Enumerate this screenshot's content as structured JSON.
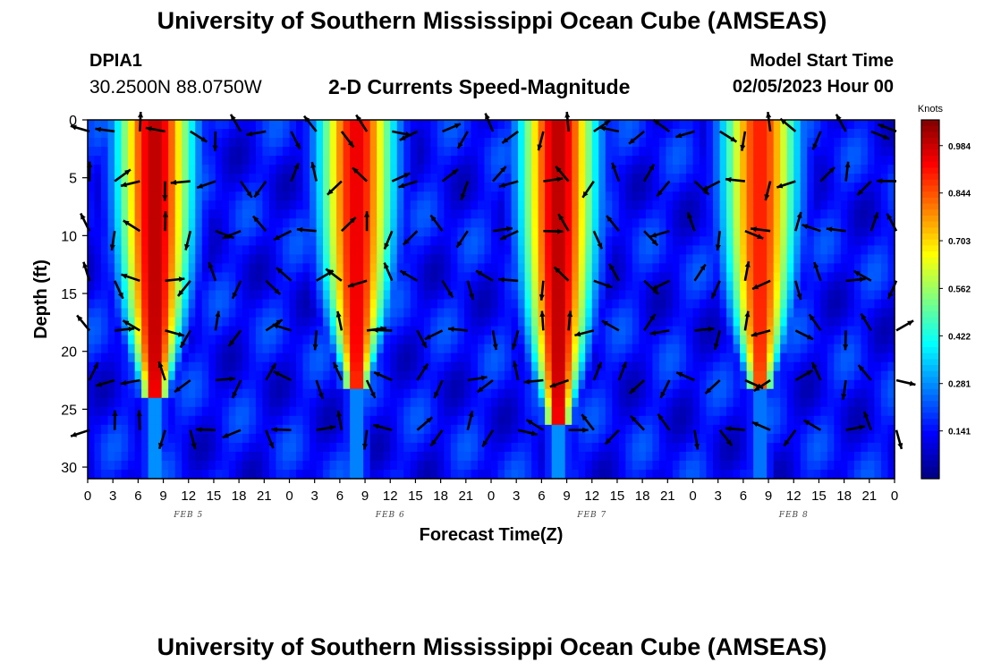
{
  "header": {
    "title": "University of Southern Mississippi Ocean Cube (AMSEAS)",
    "station_id": "DPIA1",
    "coordinates": "30.2500N  88.0750W",
    "chart_title": "2-D Currents Speed-Magnitude",
    "model_start_label": "Model Start Time",
    "model_start_value": "02/05/2023 Hour 00"
  },
  "footer": {
    "title": "University of Southern Mississippi Ocean Cube (AMSEAS)"
  },
  "chart_data": {
    "type": "heatmap",
    "title": "2-D Currents Speed-Magnitude",
    "xlabel": "Forecast Time(Z)",
    "ylabel": "Depth (ft)",
    "x_ticks": [
      "0",
      "3",
      "6",
      "9",
      "12",
      "15",
      "18",
      "21",
      "0",
      "3",
      "6",
      "9",
      "12",
      "15",
      "18",
      "21",
      "0",
      "3",
      "6",
      "9",
      "12",
      "15",
      "18",
      "21",
      "0",
      "3",
      "6",
      "9",
      "12",
      "15",
      "18",
      "21",
      "0"
    ],
    "x_range_hours": [
      0,
      96
    ],
    "date_labels": [
      {
        "label": "FEB 5",
        "hour": 12
      },
      {
        "label": "FEB 6",
        "hour": 36
      },
      {
        "label": "FEB 7",
        "hour": 60
      },
      {
        "label": "FEB 8",
        "hour": 84
      }
    ],
    "y_ticks": [
      "0",
      "5",
      "10",
      "15",
      "20",
      "25",
      "30"
    ],
    "ylim": [
      0,
      31
    ],
    "y_inverted": true,
    "colorbar": {
      "label": "Knots",
      "ticks": [
        "0.984",
        "0.844",
        "0.703",
        "0.562",
        "0.422",
        "0.281",
        "0.141"
      ],
      "range": [
        0,
        1.06
      ],
      "colormap": "jet"
    },
    "high_speed_cores": [
      {
        "center_hour": 8,
        "max_depth_ft": 23,
        "peak_knots": 1.0
      },
      {
        "center_hour": 32,
        "max_depth_ft": 22,
        "peak_knots": 0.95
      },
      {
        "center_hour": 56,
        "max_depth_ft": 25,
        "peak_knots": 1.0
      },
      {
        "center_hour": 80,
        "max_depth_ft": 22,
        "peak_knots": 0.9
      }
    ],
    "vectors": "current direction arrows at regular time/depth grid"
  }
}
